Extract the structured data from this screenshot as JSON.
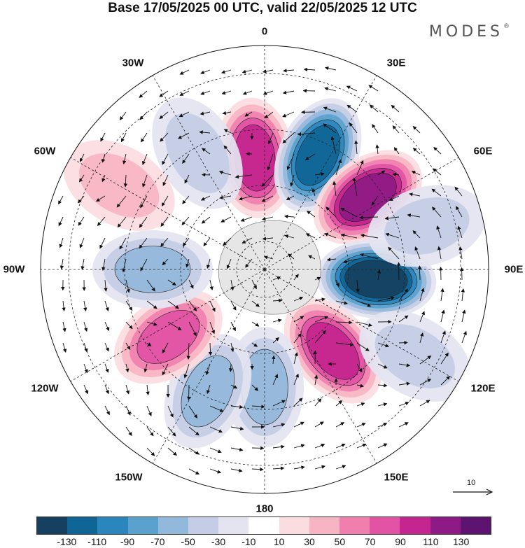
{
  "title": "Base 17/05/2025 00 UTC, valid 22/05/2025 12 UTC",
  "brand": "MODES",
  "brand_mark": "®",
  "map": {
    "projection": "south-polar-stereographic",
    "longitude_labels": {
      "top": "0",
      "top_right": "30E",
      "right_upper": "60E",
      "right": "90E",
      "right_lower": "120E",
      "bottom_right": "150E",
      "bottom": "180",
      "bottom_left": "150W",
      "left_lower": "120W",
      "left": "90W",
      "left_upper": "60W",
      "top_left": "30W"
    },
    "reference_vector_label": "10",
    "anomaly_centers": [
      {
        "lon": -5,
        "lat": -50,
        "value": 90
      },
      {
        "lon": 25,
        "lat": -45,
        "value": -120
      },
      {
        "lon": 55,
        "lat": -45,
        "value": 120
      },
      {
        "lon": 95,
        "lat": -50,
        "value": -130
      },
      {
        "lon": 140,
        "lat": -52,
        "value": 100
      },
      {
        "lon": 180,
        "lat": -48,
        "value": -50
      },
      {
        "lon": -155,
        "lat": -42,
        "value": -60
      },
      {
        "lon": -125,
        "lat": -48,
        "value": 80
      },
      {
        "lon": -90,
        "lat": -50,
        "value": -50
      },
      {
        "lon": -60,
        "lat": -30,
        "value": 40
      },
      {
        "lon": -30,
        "lat": -42,
        "value": -40
      },
      {
        "lon": 75,
        "lat": -30,
        "value": -30
      },
      {
        "lon": 120,
        "lat": -28,
        "value": -40
      }
    ]
  },
  "colorbar": {
    "colors": [
      "#15405f",
      "#0f6595",
      "#2c86be",
      "#5aa1cd",
      "#92b8dc",
      "#c4cde5",
      "#e4e4f1",
      "#ffffff",
      "#fbdcdf",
      "#f7b4c2",
      "#f07fae",
      "#e253a5",
      "#c4258f",
      "#8e1a85",
      "#5c1470"
    ],
    "tick_labels": [
      "-130",
      "-110",
      "-90",
      "-70",
      "-50",
      "-30",
      "-10",
      "10",
      "30",
      "50",
      "70",
      "90",
      "110",
      "130"
    ]
  }
}
